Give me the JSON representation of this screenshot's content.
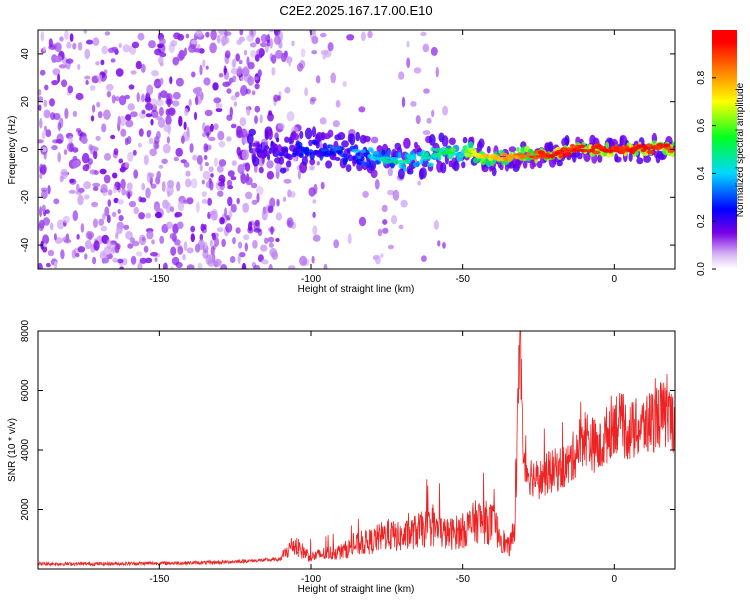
{
  "title": "C2E2.2025.167.17.00.E10",
  "colorbar": {
    "label": "Normalized spectral amplitude",
    "range": [
      0.0,
      1.0
    ],
    "ticks": [
      "0.0",
      "0.2",
      "0.4",
      "0.6",
      "0.8"
    ]
  },
  "chart_data": [
    {
      "type": "heatmap",
      "xlabel": "Height of straight line (km)",
      "ylabel": "Frequency (Hz)",
      "xlim": [
        -190,
        20
      ],
      "ylim": [
        -50,
        50
      ],
      "xticks": [
        "-150",
        "-100",
        "-50",
        "0"
      ],
      "yticks": [
        "-40",
        "-20",
        "0",
        "20",
        "40"
      ],
      "colormap": "rainbow (white → purple → blue → cyan → green → yellow → orange → red)",
      "ridge": {
        "description": "Frequency of strongest spectral amplitude vs height",
        "x": [
          -120,
          -110,
          -100,
          -90,
          -80,
          -70,
          -60,
          -55,
          -50,
          -45,
          -40,
          -35,
          -30,
          -25,
          -20,
          -15,
          -10,
          -5,
          0,
          5,
          10,
          15,
          20
        ],
        "y": [
          0,
          0,
          0,
          -1,
          -3,
          -5,
          -3,
          0,
          -1,
          -2,
          -4,
          -3,
          -2,
          -2,
          -3,
          0,
          0,
          0,
          0,
          0,
          0,
          1,
          0
        ],
        "amplitude": [
          0.15,
          0.2,
          0.25,
          0.3,
          0.4,
          0.45,
          0.5,
          0.55,
          0.6,
          0.7,
          0.75,
          0.8,
          0.85,
          0.9,
          0.95,
          0.95,
          0.95,
          0.95,
          0.95,
          0.95,
          0.95,
          0.95,
          0.9
        ]
      },
      "noise_region_x": [
        -190,
        -110
      ]
    },
    {
      "type": "line",
      "xlabel": "Height of straight line (km)",
      "ylabel": "SNR (10 * v/v)",
      "xlim": [
        -190,
        20
      ],
      "ylim": [
        0,
        8000
      ],
      "xticks": [
        "-150",
        "-100",
        "-50",
        "0"
      ],
      "yticks": [
        "2000",
        "4000",
        "6000",
        "8000"
      ],
      "color": "#ee2222",
      "series": [
        {
          "x": [
            -190,
            -180,
            -170,
            -160,
            -150,
            -140,
            -130,
            -120,
            -110,
            -106,
            -100,
            -95,
            -90,
            -85,
            -80,
            -75,
            -70,
            -65,
            -60,
            -55,
            -50,
            -45,
            -40,
            -35,
            -33,
            -31,
            -30,
            -28,
            -25,
            -22,
            -20,
            -15,
            -10,
            -5,
            0,
            5,
            10,
            15,
            20
          ],
          "y": [
            150,
            150,
            150,
            160,
            170,
            180,
            200,
            250,
            300,
            700,
            350,
            450,
            500,
            700,
            800,
            1000,
            900,
            1100,
            1200,
            1000,
            1100,
            1400,
            1300,
            600,
            1000,
            8000,
            3500,
            3200,
            3000,
            3200,
            3300,
            3500,
            4500,
            4000,
            5000,
            4600,
            4800,
            5200,
            5000
          ]
        }
      ]
    }
  ]
}
